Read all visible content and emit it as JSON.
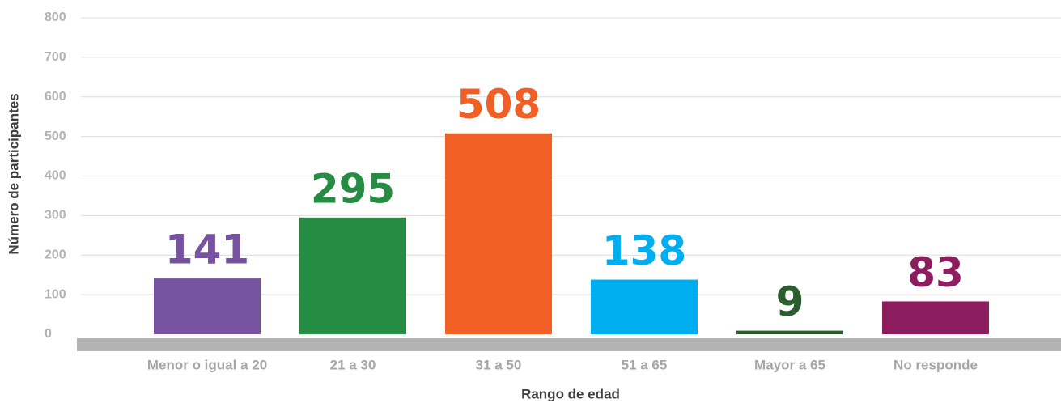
{
  "chart_data": {
    "type": "bar",
    "x_label": "Rango de edad",
    "y_label": "Número de participantes",
    "categories": [
      "Menor o igual a 20",
      "21 a 30",
      "31 a 50",
      "51 a 65",
      "Mayor a 65",
      "No responde"
    ],
    "values": [
      141,
      295,
      508,
      138,
      9,
      83
    ],
    "colors": [
      "#7652a0",
      "#278c43",
      "#f15f25",
      "#00aeef",
      "#2a5e2d",
      "#8d1d5f"
    ],
    "ylim": [
      0,
      800
    ],
    "yticks": [
      0,
      100,
      200,
      300,
      400,
      500,
      600,
      700,
      800
    ],
    "grid": true
  }
}
